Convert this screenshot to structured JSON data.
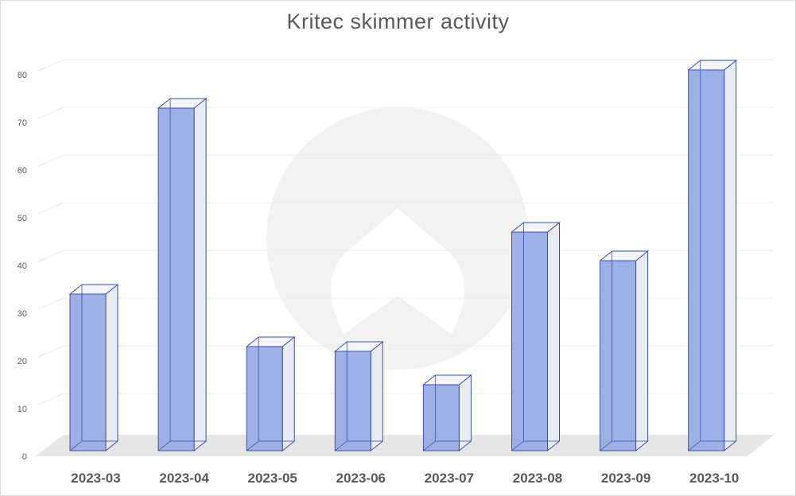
{
  "chart_data": {
    "type": "bar",
    "title": "Kritec skimmer activity",
    "xlabel": "",
    "ylabel": "",
    "categories": [
      "2023-03",
      "2023-04",
      "2023-05",
      "2023-06",
      "2023-07",
      "2023-08",
      "2023-09",
      "2023-10"
    ],
    "values": [
      33,
      72,
      22,
      21,
      14,
      46,
      40,
      80
    ],
    "ylim": [
      0,
      85
    ],
    "yticks": [
      0,
      10,
      20,
      30,
      40,
      50,
      60,
      70,
      80
    ],
    "grid": true,
    "legend": "none",
    "style": "3d-column",
    "colors": {
      "bar_front": "#9aace6",
      "bar_edge": "#3f51a3",
      "bar_side": "#e9ebf2",
      "floor": "#e6e6e6",
      "gridline": "#ececec",
      "text": "#595959",
      "watermark": "#f2f2f2"
    }
  }
}
